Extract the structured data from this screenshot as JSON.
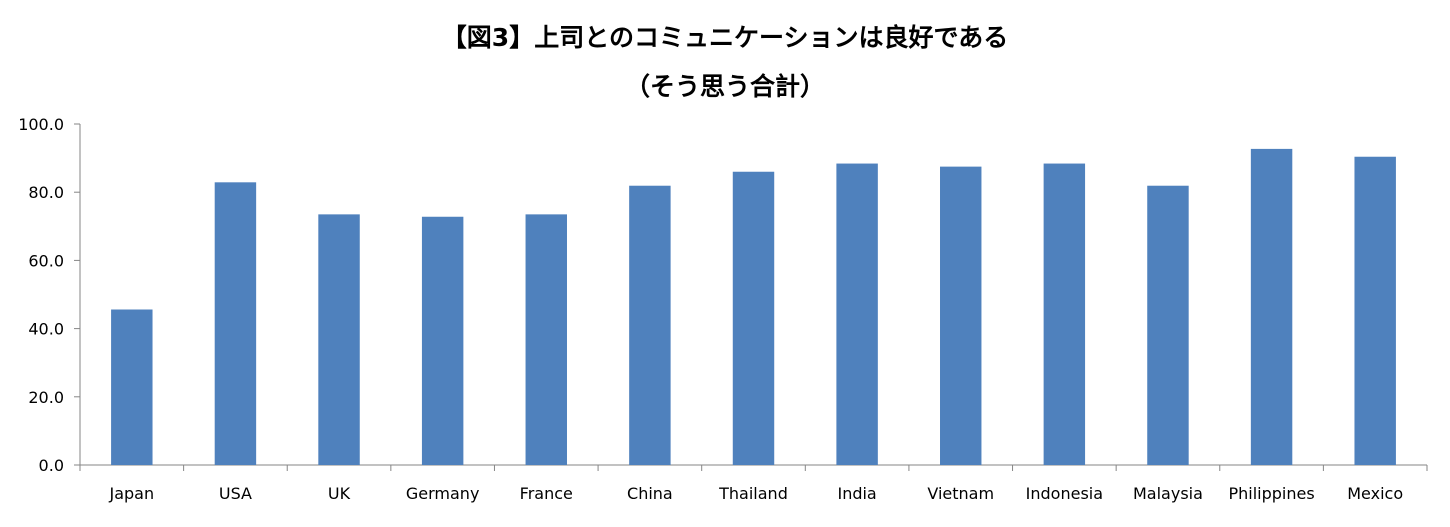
{
  "chart_data": {
    "type": "bar",
    "title": "【図3】上司とのコミュニケーションは良好である",
    "subtitle": "（そう思う合計）",
    "xlabel": "",
    "ylabel": "",
    "ylim": [
      0,
      100
    ],
    "yticks": [
      "0.0",
      "20.0",
      "40.0",
      "60.0",
      "80.0",
      "100.0"
    ],
    "grid": false,
    "legend": "none",
    "bar_color": "#4f81bd",
    "categories": [
      "Japan",
      "USA",
      "UK",
      "Germany",
      "France",
      "China",
      "Thailand",
      "India",
      "Vietnam",
      "Indonesia",
      "Malaysia",
      "Philippines",
      "Mexico"
    ],
    "values": [
      45.6,
      82.9,
      73.5,
      72.8,
      73.5,
      81.9,
      86.0,
      88.4,
      87.5,
      88.4,
      81.9,
      92.7,
      90.4
    ]
  }
}
